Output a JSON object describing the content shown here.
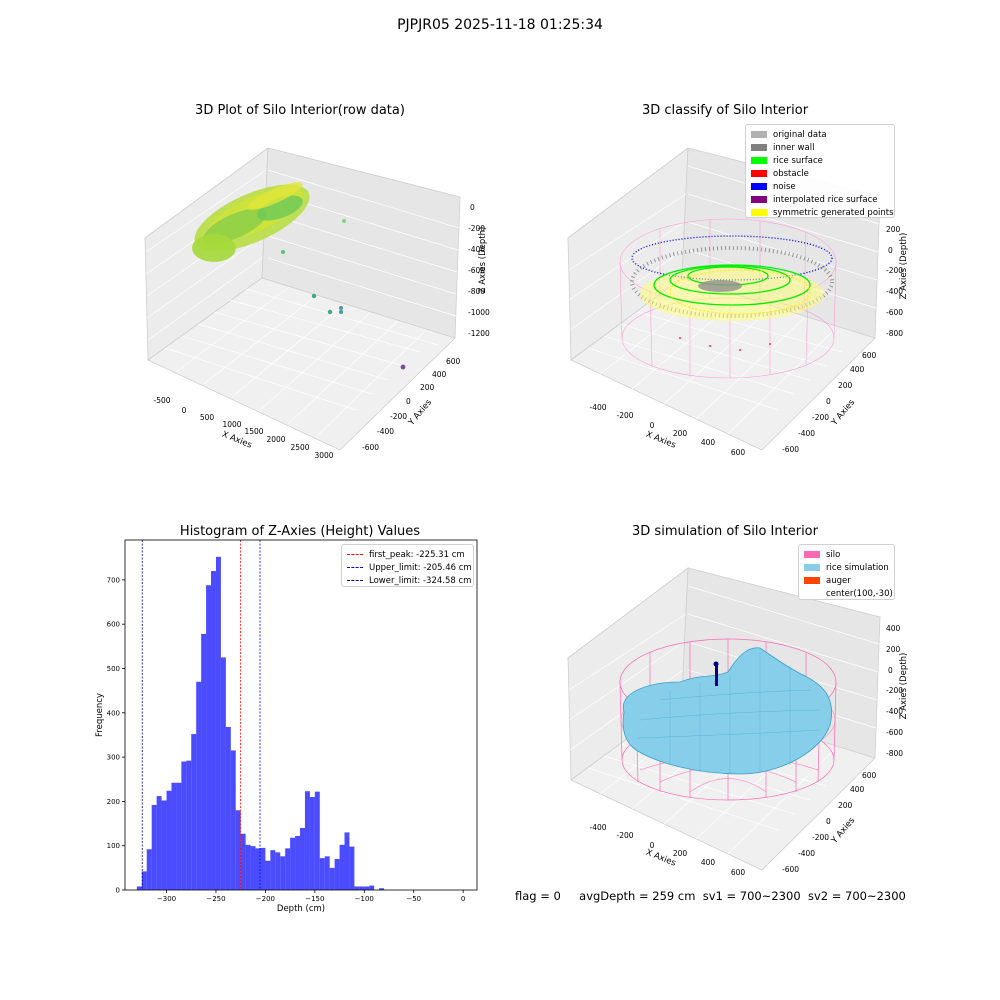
{
  "figure": {
    "suptitle": "PJPJR05 2025-11-18 01:25:34",
    "status": {
      "flag": "flag = 0",
      "avg_depth": "avgDepth = 259 cm",
      "sv1": "sv1 = 700~2300",
      "sv2": "sv2 = 700~2300"
    }
  },
  "chart_data": [
    {
      "type": "scatter",
      "title": "3D Plot of Silo Interior(row data)",
      "xlabel": "X Axies",
      "ylabel": "Y Axies",
      "zlabel": "Z Axies (Depth)",
      "x_ticks": [
        "-500",
        "0",
        "500",
        "1000",
        "1500",
        "2000",
        "2500",
        "3000"
      ],
      "y_ticks": [
        "-600",
        "-400",
        "-200",
        "0",
        "200",
        "400",
        "600"
      ],
      "z_ticks": [
        "-1200",
        "-1000",
        "-800",
        "-600",
        "-400",
        "-200",
        "0"
      ],
      "colors": {
        "surface": "#a8d838",
        "outlier": "#3aa68a",
        "far_outlier": "#7a4a9a"
      }
    },
    {
      "type": "scatter",
      "title": "3D classify of Silo Interior",
      "xlabel": "X Axies",
      "ylabel": "Y Axies",
      "zlabel": "Z Axies (Depth)",
      "x_ticks": [
        "-400",
        "-200",
        "0",
        "200",
        "400",
        "600"
      ],
      "y_ticks": [
        "-600",
        "-400",
        "-200",
        "0",
        "200",
        "400",
        "600"
      ],
      "z_ticks": [
        "-800",
        "-600",
        "-400",
        "-200",
        "0",
        "200"
      ],
      "legend": [
        {
          "label": "original data",
          "color": "#b0b0b0"
        },
        {
          "label": "inner wall",
          "color": "#808080"
        },
        {
          "label": "rice surface",
          "color": "#00ff00"
        },
        {
          "label": "obstacle",
          "color": "#ff0000"
        },
        {
          "label": "noise",
          "color": "#0000ff"
        },
        {
          "label": "interpolated rice surface",
          "color": "#800080"
        },
        {
          "label": "symmetric generated points",
          "color": "#ffff00"
        }
      ]
    },
    {
      "type": "bar",
      "title": "Histogram of Z-Axies (Height) Values",
      "xlabel": "Depth (cm)",
      "ylabel": "Frequency",
      "xlim": [
        -342,
        14
      ],
      "ylim": [
        0,
        790
      ],
      "x_ticks": [
        -300,
        -250,
        -200,
        -150,
        -100,
        -50,
        0
      ],
      "y_ticks": [
        0,
        100,
        200,
        300,
        400,
        500,
        600,
        700
      ],
      "bar_color": "#0000ff",
      "bin_start": -330,
      "bin_width": 5,
      "values": [
        8,
        42,
        92,
        192,
        212,
        202,
        224,
        242,
        242,
        290,
        292,
        352,
        470,
        578,
        688,
        720,
        752,
        525,
        368,
        315,
        180,
        127,
        102,
        99,
        94,
        95,
        66,
        90,
        85,
        76,
        94,
        118,
        122,
        140,
        223,
        210,
        222,
        72,
        76,
        50,
        70,
        102,
        130,
        98,
        8,
        8,
        8,
        10,
        0,
        4
      ],
      "vlines": [
        {
          "value": -225.31,
          "label": "first_peak: -225.31 cm",
          "color": "#ff0000"
        },
        {
          "value": -205.46,
          "label": "Upper_limit: -205.46 cm",
          "color": "#0000ff"
        },
        {
          "value": -324.58,
          "label": "Lower_limit: -324.58 cm",
          "color": "#00008b"
        }
      ]
    },
    {
      "type": "area",
      "title": "3D simulation of Silo Interior",
      "xlabel": "X Axies",
      "ylabel": "Y Axies",
      "zlabel": "Z Axies (Depth)",
      "x_ticks": [
        "-400",
        "-200",
        "0",
        "200",
        "400",
        "600"
      ],
      "y_ticks": [
        "-600",
        "-400",
        "-200",
        "0",
        "200",
        "400",
        "600"
      ],
      "z_ticks": [
        "-800",
        "-600",
        "-400",
        "-200",
        "0",
        "200",
        "400"
      ],
      "legend": [
        {
          "label": "silo",
          "color": "#ff69b4"
        },
        {
          "label": "rice simulation",
          "color": "#87ceeb"
        },
        {
          "label": "auger",
          "color": "#ff4500"
        },
        {
          "label": "center(100,-30)",
          "color": ""
        }
      ]
    }
  ]
}
